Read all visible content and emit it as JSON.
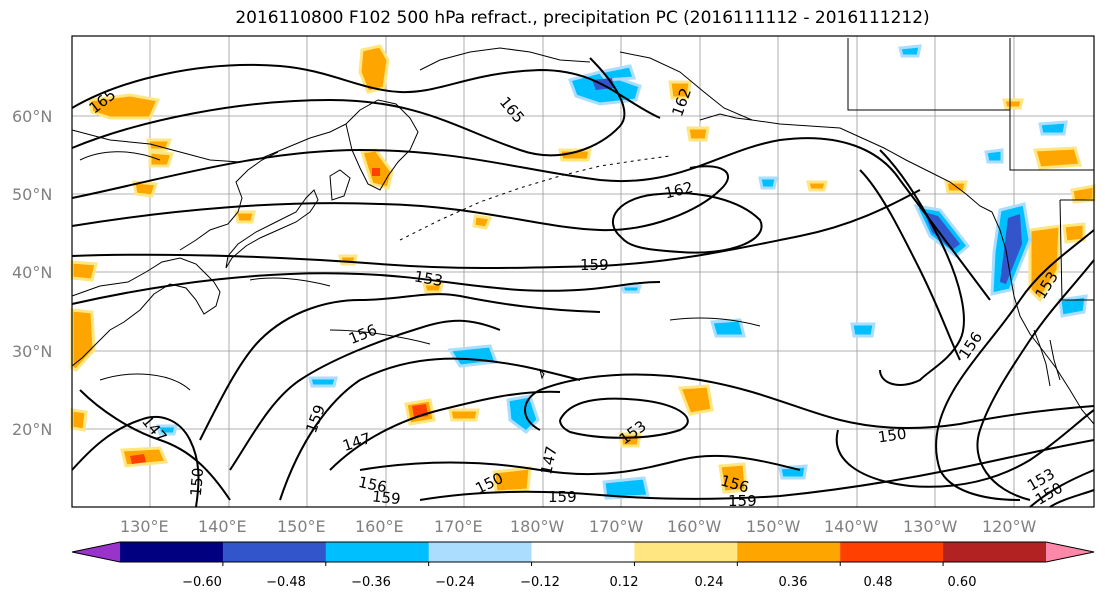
{
  "title": "2016110800 F102 500 hPa refract., precipitation PC (2016111112 - 2016111212)",
  "lat_labels": [
    "60°N",
    "50°N",
    "40°N",
    "30°N",
    "20°N"
  ],
  "lon_labels": [
    "130°E",
    "140°E",
    "150°E",
    "160°E",
    "170°E",
    "180°W",
    "170°W",
    "160°W",
    "150°W",
    "140°W",
    "130°W",
    "120°W"
  ],
  "colorbar": {
    "colors": [
      "#9933cc",
      "#000080",
      "#3355cc",
      "#00bfff",
      "#aaddff",
      "#ffffff",
      "#ffe680",
      "#ffa500",
      "#ff4000",
      "#b22222",
      "#ff88aa"
    ],
    "tick_labels": [
      "−0.60",
      "−0.48",
      "−0.36",
      "−0.24",
      "−0.12",
      "0.12",
      "0.24",
      "0.36",
      "0.48",
      "0.60"
    ]
  },
  "contour_labels": [
    {
      "id": "c165a",
      "text": "165"
    },
    {
      "id": "c165b",
      "text": "165"
    },
    {
      "id": "c162a",
      "text": "162"
    },
    {
      "id": "c162b",
      "text": "162"
    },
    {
      "id": "c159a",
      "text": "159"
    },
    {
      "id": "c153a",
      "text": "153"
    },
    {
      "id": "c156a",
      "text": "156"
    },
    {
      "id": "c159b",
      "text": "159"
    },
    {
      "id": "c147a",
      "text": "147"
    },
    {
      "id": "c147b",
      "text": "147"
    },
    {
      "id": "c150a",
      "text": "150"
    },
    {
      "id": "c156b",
      "text": "156"
    },
    {
      "id": "c159c",
      "text": "159"
    },
    {
      "id": "c150b",
      "text": "150"
    },
    {
      "id": "c147c",
      "text": "147"
    },
    {
      "id": "c159d",
      "text": "159"
    },
    {
      "id": "c153b",
      "text": "153"
    },
    {
      "id": "c156c",
      "text": "156"
    },
    {
      "id": "c159e",
      "text": "159"
    },
    {
      "id": "c150c",
      "text": "150"
    },
    {
      "id": "c156d",
      "text": "156"
    },
    {
      "id": "c153c",
      "text": "153"
    },
    {
      "id": "c153d",
      "text": "153"
    },
    {
      "id": "c150d",
      "text": "150"
    }
  ]
}
